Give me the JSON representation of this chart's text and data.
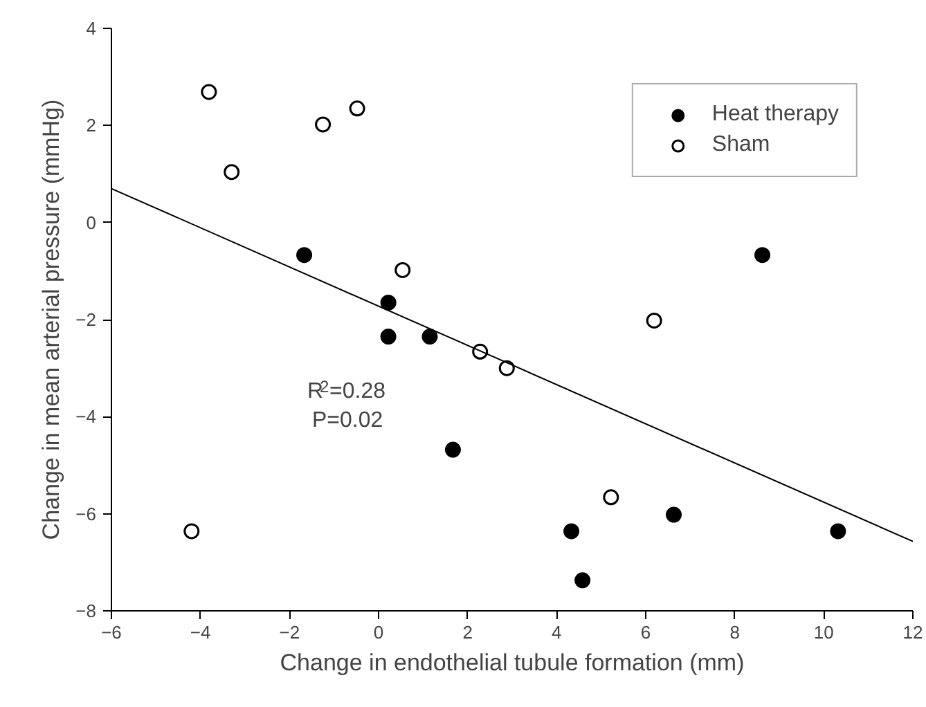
{
  "chart_data": {
    "type": "scatter",
    "xlabel": "Change in endothelial tubule formation (mm)",
    "ylabel": "Change in mean arterial pressure (mmHg)",
    "xlim": [
      -6,
      12
    ],
    "ylim": [
      -8,
      4
    ],
    "xticks": [
      -6,
      -4,
      -2,
      0,
      2,
      4,
      6,
      8,
      10,
      12
    ],
    "yticks": [
      -8,
      -6,
      -4,
      -2,
      0,
      2,
      4
    ],
    "grid": false,
    "legend": "top right",
    "marker": "circle",
    "series": [
      {
        "name": "Heat therapy",
        "color": "#000000",
        "x": [
          -1.67,
          0.22,
          0.22,
          1.15,
          1.67,
          4.33,
          4.58,
          6.63,
          8.62,
          10.32
        ],
        "values": [
          -0.67,
          -1.65,
          -2.35,
          -2.35,
          -4.68,
          -6.36,
          -7.37,
          -6.02,
          -0.67,
          -6.36
        ]
      },
      {
        "name": "Sham",
        "color": "#ffffff",
        "x": [
          -3.81,
          -3.3,
          -1.25,
          -0.48,
          0.54,
          2.28,
          2.88,
          6.19,
          5.22,
          -4.2
        ],
        "values": [
          2.69,
          1.04,
          2.02,
          2.35,
          -0.98,
          -2.66,
          -3.0,
          -2.02,
          -5.66,
          -6.36
        ]
      },
      {
        "type": "line",
        "color": "#000000",
        "x": [
          -6,
          12
        ],
        "values": [
          0.7,
          -6.57
        ],
        "marker": "none",
        "line_style": "solid"
      }
    ],
    "annotations": [
      "R$^{2}$=0.28",
      "P=0.02"
    ]
  }
}
